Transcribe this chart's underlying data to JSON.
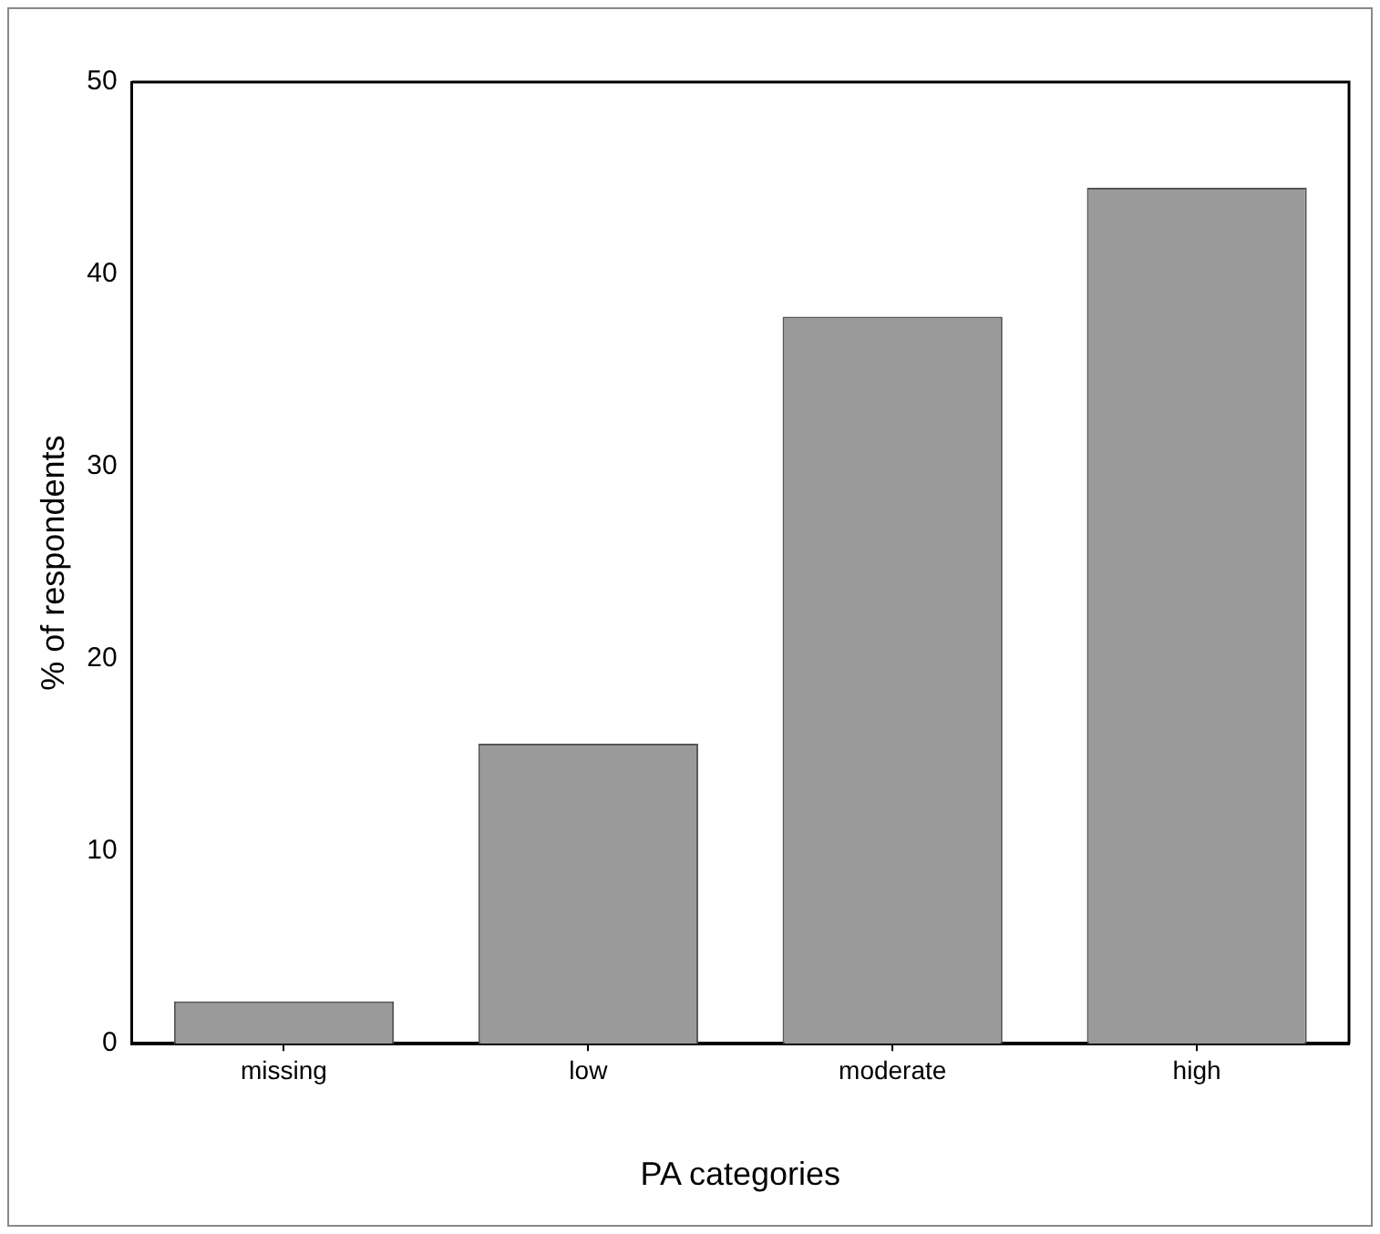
{
  "chart_data": {
    "type": "bar",
    "xlabel": "PA categories",
    "ylabel": "% of respondents",
    "categories": [
      "missing",
      "low",
      "moderate",
      "high"
    ],
    "values": [
      2.2,
      15.6,
      37.8,
      44.5
    ],
    "color": "#9a9a9a",
    "ylim": [
      0,
      50
    ],
    "yticks": [
      0,
      10,
      20,
      30,
      40,
      50
    ],
    "grid": false,
    "legend": false
  }
}
